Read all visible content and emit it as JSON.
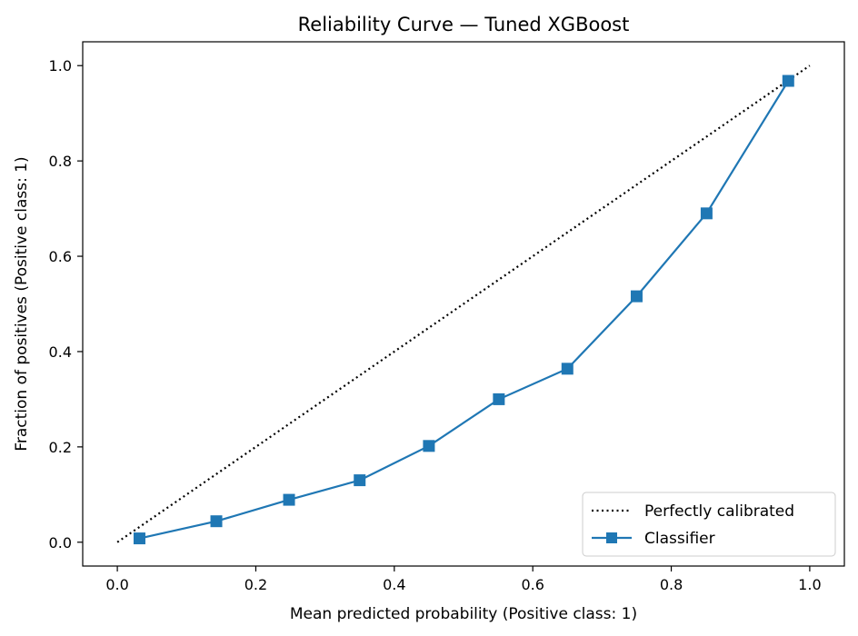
{
  "chart_data": {
    "type": "line",
    "title": "Reliability Curve — Tuned XGBoost",
    "xlabel": "Mean predicted probability (Positive class: 1)",
    "ylabel": "Fraction of positives (Positive class: 1)",
    "xlim": [
      -0.05,
      1.05
    ],
    "ylim": [
      -0.05,
      1.05
    ],
    "xticks": [
      "0.0",
      "0.2",
      "0.4",
      "0.6",
      "0.8",
      "1.0"
    ],
    "yticks": [
      "0.0",
      "0.2",
      "0.4",
      "0.6",
      "0.8",
      "1.0"
    ],
    "grid": false,
    "legend_position": "bottom-right",
    "series": [
      {
        "name": "Perfectly calibrated",
        "style": "dotted",
        "color": "#000000",
        "x": [
          0.0,
          1.0
        ],
        "y": [
          0.0,
          1.0
        ]
      },
      {
        "name": "Classifier",
        "style": "solid",
        "marker": "square",
        "color": "#1f77b4",
        "x": [
          0.032,
          0.143,
          0.248,
          0.35,
          0.45,
          0.551,
          0.65,
          0.75,
          0.851,
          0.969
        ],
        "y": [
          0.008,
          0.044,
          0.089,
          0.13,
          0.202,
          0.3,
          0.364,
          0.516,
          0.69,
          0.968
        ]
      }
    ]
  }
}
